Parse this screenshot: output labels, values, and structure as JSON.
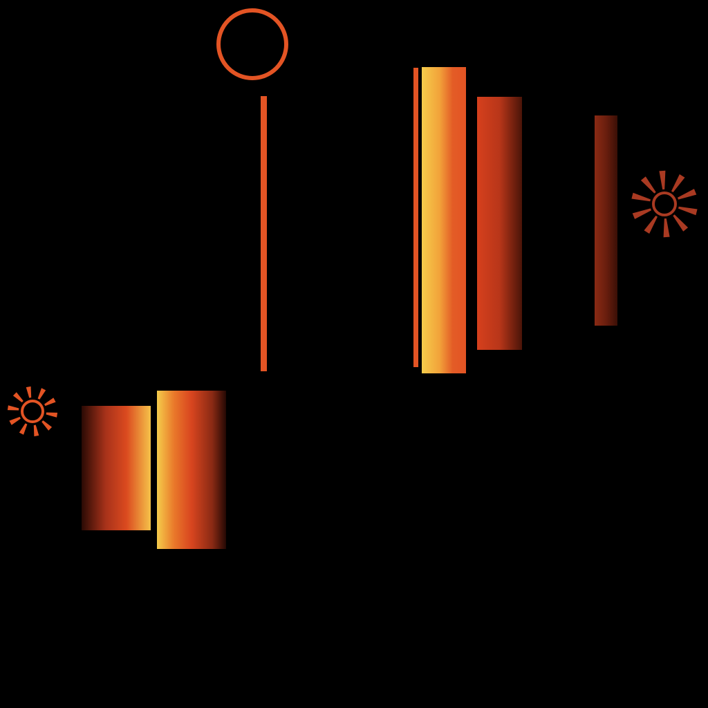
{
  "colors": {
    "background": "#000000",
    "orange": "#e35424",
    "red_orange": "#cf3f1e",
    "dark_brown": "#4a1408",
    "yellow": "#f5cc4b",
    "rust": "#a93a22"
  },
  "shapes": {
    "ring": "ring-outline",
    "sun_small": "sun-burst-icon",
    "sun_large": "sun-burst-icon",
    "bars": [
      "gradient-bar-dark-to-yellow",
      "gradient-bar-yellow-to-dark",
      "gradient-bar-yellow-to-orange",
      "gradient-bar-orange-to-dark",
      "gradient-bar-rust-to-dark"
    ],
    "lines": [
      "vertical-line-orange",
      "vertical-line-orange-thin"
    ]
  }
}
